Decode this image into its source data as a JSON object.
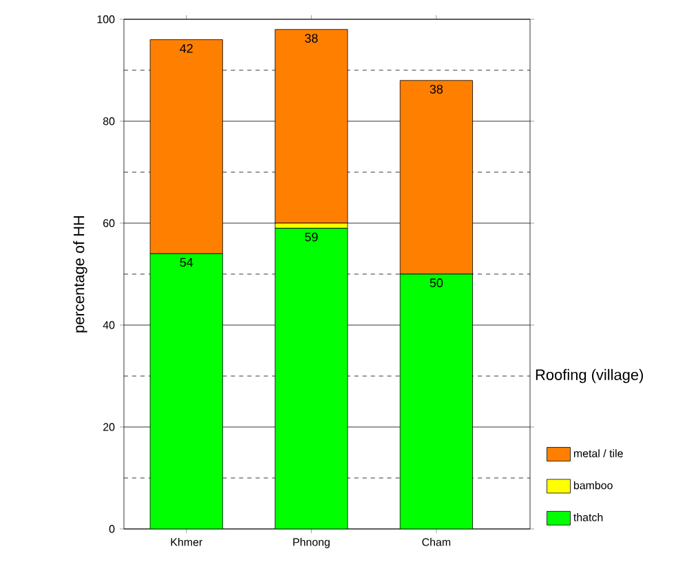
{
  "chart_data": {
    "type": "bar",
    "stacked": true,
    "categories": [
      "Khmer",
      "Phnong",
      "Cham"
    ],
    "ylabel": "percentage of HH",
    "legend_title": "Roofing (village)",
    "series": [
      {
        "name": "thatch",
        "color": "#00ff00",
        "values": [
          54,
          59,
          50
        ],
        "value_labels": [
          "54",
          "59",
          "50"
        ]
      },
      {
        "name": "bamboo",
        "color": "#ffff00",
        "values": [
          0,
          1,
          0
        ]
      },
      {
        "name": "metal / tile",
        "color": "#ff8000",
        "values": [
          42,
          38,
          38
        ],
        "value_labels": [
          "42",
          "38",
          "38"
        ]
      }
    ],
    "ylim": [
      0,
      100
    ],
    "yticks": [
      0,
      20,
      40,
      60,
      80,
      100
    ],
    "grid": "y",
    "legend": "right"
  }
}
